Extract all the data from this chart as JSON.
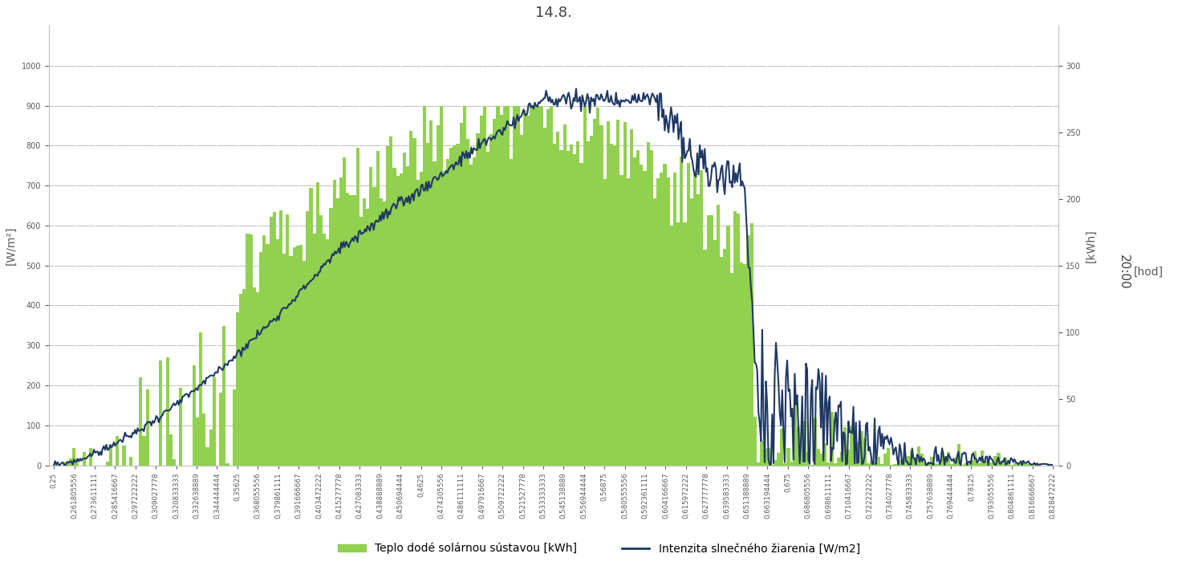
{
  "title": "14.8.",
  "xlabel": "[hod]",
  "ylabel_left": "[W/m²]",
  "ylabel_right": "[kWh]",
  "right_label_rotated": "20:00",
  "ylim_left": [
    0,
    1100
  ],
  "ylim_right": [
    0,
    330
  ],
  "yticks_left": [
    0,
    100,
    200,
    300,
    400,
    500,
    600,
    700,
    800,
    900,
    1000
  ],
  "yticks_right": [
    0,
    50,
    100,
    150,
    200,
    250,
    300
  ],
  "bar_color": "#92D050",
  "bar_edge_color": "#92D050",
  "line_color": "#1F3864",
  "background_color": "#FFFFFF",
  "grid_color": "#BFBFBF",
  "legend_bar_label": "Teplo dodé solárnou sústavou [kWh]",
  "legend_line_label": "Intenzita slnečného žiarenia [W/m2]",
  "x_tick_values": [
    0.25,
    0.261805556,
    0.273611111,
    0.285416667,
    0.297222222,
    0.309027778,
    0.320833333,
    0.332638889,
    0.344444444,
    0.35625,
    0.368055556,
    0.379861111,
    0.391666667,
    0.403472222,
    0.415277778,
    0.427083333,
    0.438888889,
    0.450694444,
    0.4625,
    0.474305556,
    0.486111111,
    0.497916667,
    0.509722222,
    0.521527778,
    0.533333333,
    0.545138889,
    0.556944444,
    0.56875,
    0.580555556,
    0.592361111,
    0.604166667,
    0.615972222,
    0.627777778,
    0.639583333,
    0.651388889,
    0.663194444,
    0.675,
    0.686805556,
    0.698611111,
    0.710416667,
    0.722222222,
    0.734027778,
    0.745833333,
    0.757638889,
    0.769444444,
    0.78125,
    0.793055556,
    0.804861111,
    0.816666667,
    0.828472222
  ],
  "title_fontsize": 13,
  "tick_fontsize": 7,
  "legend_fontsize": 10,
  "axis_label_fontsize": 10
}
